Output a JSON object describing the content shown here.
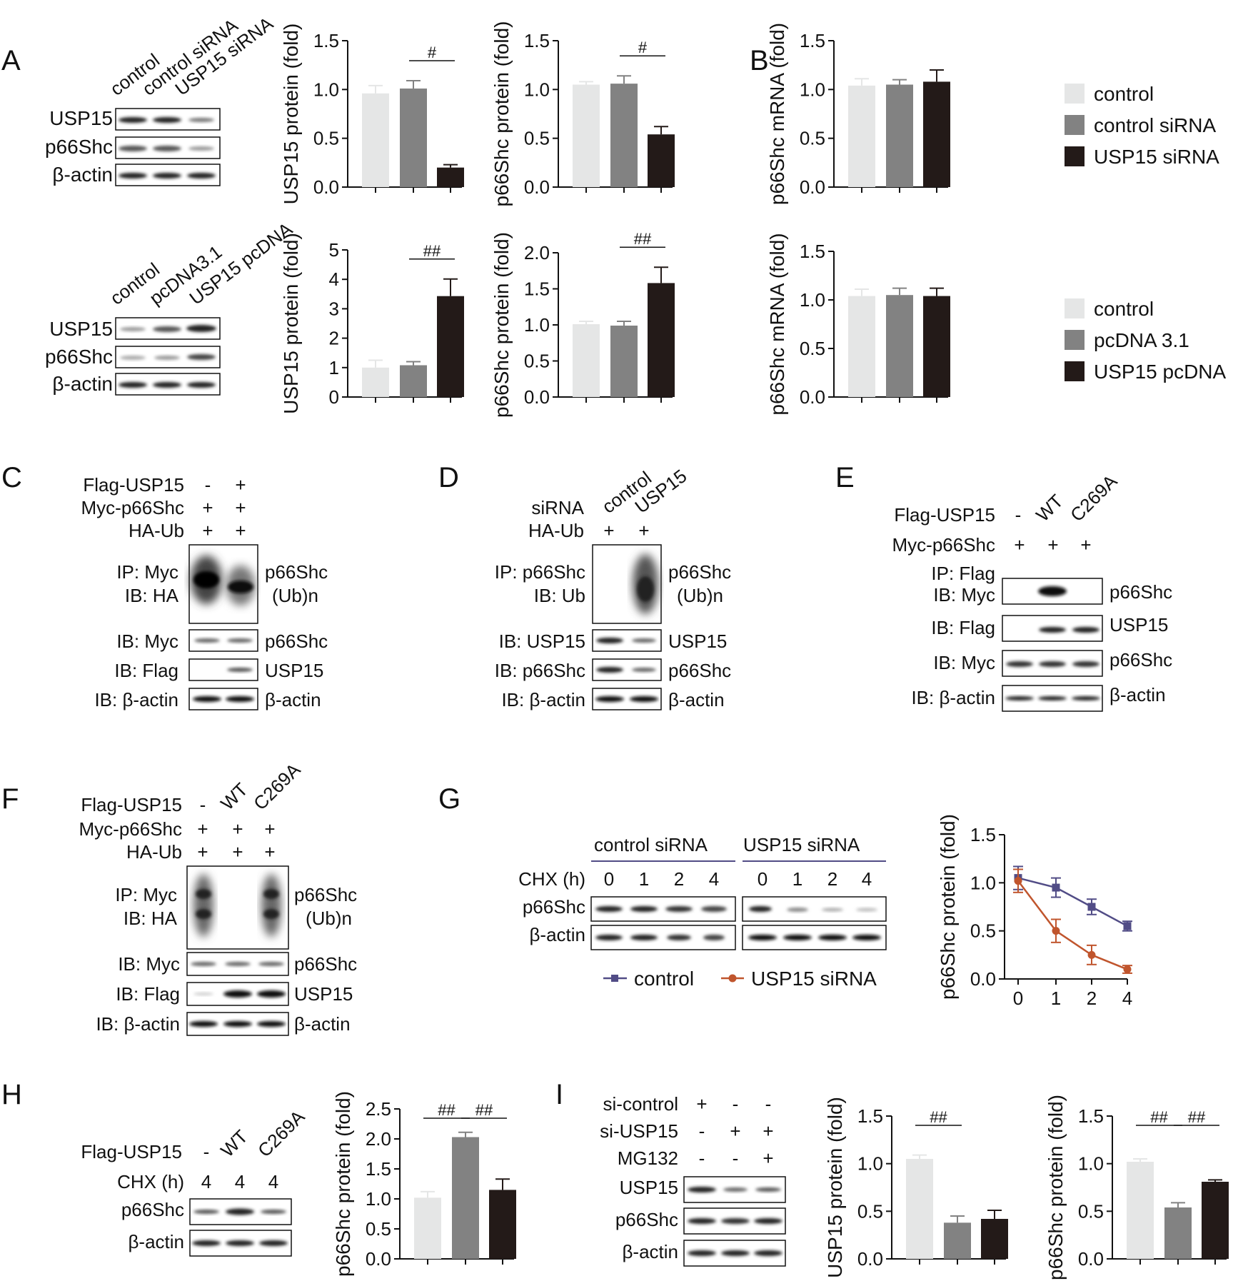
{
  "legend_top": [
    "control",
    "control siRNA",
    "USP15 siRNA"
  ],
  "legend_mid": [
    "control",
    "pcDNA 3.1",
    "USP15 pcDNA"
  ],
  "colors": {
    "control": "#e5e6e6",
    "vehicle": "#828282",
    "treatment": "#231a18",
    "line_control": "#514c86",
    "line_si": "#c0552d"
  },
  "panels": {
    "A": {
      "label": "A",
      "blot1": {
        "lanes": [
          "control",
          "control siRNA",
          "USP15 siRNA"
        ],
        "rows": [
          "USP15",
          "p66Shc",
          "β-actin"
        ]
      },
      "blot2": {
        "lanes": [
          "control",
          "pcDNA3.1",
          "USP15 pcDNA"
        ],
        "rows": [
          "USP15",
          "p66Shc",
          "β-actin"
        ]
      }
    },
    "B": {
      "label": "B"
    },
    "C": {
      "label": "C",
      "conditions": [
        {
          "name": "Flag-USP15",
          "marks": [
            "-",
            "+"
          ]
        },
        {
          "name": "Myc-p66Shc",
          "marks": [
            "+",
            "+"
          ]
        },
        {
          "name": "HA-Ub",
          "marks": [
            "+",
            "+"
          ]
        }
      ],
      "ip_left": [
        "IP: Myc",
        "IB: HA"
      ],
      "ip_right": [
        "p66Shc",
        "(Ub)n"
      ],
      "ib_rows": [
        {
          "left": "IB: Myc",
          "right": "p66Shc"
        },
        {
          "left": "IB: Flag",
          "right": "USP15"
        },
        {
          "left": "IB: β-actin",
          "right": "β-actin"
        }
      ]
    },
    "D": {
      "label": "D",
      "siRNA_label": "siRNA",
      "lanes": [
        "control",
        "USP15"
      ],
      "haub": {
        "name": "HA-Ub",
        "marks": [
          "+",
          "+"
        ]
      },
      "ip_left": [
        "IP: p66Shc",
        "IB: Ub"
      ],
      "ip_right": [
        "p66Shc",
        "(Ub)n"
      ],
      "ib_rows": [
        {
          "left": "IB: USP15",
          "right": "USP15"
        },
        {
          "left": "IB: p66Shc",
          "right": "p66Shc"
        },
        {
          "left": "IB: β-actin",
          "right": "β-actin"
        }
      ]
    },
    "E": {
      "label": "E",
      "conditions": [
        {
          "name": "Flag-USP15",
          "marks": [
            "-",
            "WT",
            "C269A"
          ]
        },
        {
          "name": "Myc-p66Shc",
          "marks": [
            "+",
            "+",
            "+"
          ]
        }
      ],
      "ip_left": [
        "IP: Flag",
        "IB: Myc"
      ],
      "ip_right": "p66Shc",
      "ib_rows": [
        {
          "left": "IB: Flag",
          "right": "USP15"
        },
        {
          "left": "IB: Myc",
          "right": "p66Shc"
        },
        {
          "left": "IB: β-actin",
          "right": "β-actin"
        }
      ]
    },
    "F": {
      "label": "F",
      "conditions": [
        {
          "name": "Flag-USP15",
          "marks": [
            "-",
            "WT",
            "C269A"
          ]
        },
        {
          "name": "Myc-p66Shc",
          "marks": [
            "+",
            "+",
            "+"
          ]
        },
        {
          "name": "HA-Ub",
          "marks": [
            "+",
            "+",
            "+"
          ]
        }
      ],
      "ip_left": [
        "IP: Myc",
        "IB: HA"
      ],
      "ip_right": [
        "p66Shc",
        "(Ub)n"
      ],
      "ib_rows": [
        {
          "left": "IB: Myc",
          "right": "p66Shc"
        },
        {
          "left": "IB: Flag",
          "right": "USP15"
        },
        {
          "left": "IB: β-actin",
          "right": "β-actin"
        }
      ]
    },
    "G": {
      "label": "G",
      "group_left": "control siRNA",
      "group_right": "USP15 siRNA",
      "chx_label": "CHX (h)",
      "times": [
        "0",
        "1",
        "2",
        "4",
        "0",
        "1",
        "2",
        "4"
      ],
      "rows": [
        "p66Shc",
        "β-actin"
      ],
      "legend": [
        "control",
        "USP15 siRNA"
      ]
    },
    "H": {
      "label": "H",
      "flag_label": "Flag-USP15",
      "lanes": [
        "-",
        "WT",
        "C269A"
      ],
      "chx_label": "CHX (h)",
      "chx_values": [
        "4",
        "4",
        "4"
      ],
      "rows": [
        "p66Shc",
        "β-actin"
      ]
    },
    "I": {
      "label": "I",
      "conditions": [
        {
          "name": "si-control",
          "marks": [
            "+",
            "-",
            "-"
          ]
        },
        {
          "name": "si-USP15",
          "marks": [
            "-",
            "+",
            "+"
          ]
        },
        {
          "name": "MG132",
          "marks": [
            "-",
            "-",
            "+"
          ]
        }
      ],
      "rows": [
        "USP15",
        "p66Shc",
        "β-actin"
      ]
    }
  },
  "chart_data": [
    {
      "id": "A1",
      "type": "bar",
      "ylabel": "USP15 protein (fold)",
      "ylim": [
        0,
        1.5
      ],
      "ticks": [
        "0.0",
        "0.5",
        "1.0",
        "1.5"
      ],
      "values": [
        0.96,
        1.01,
        0.2
      ],
      "errors": [
        0.08,
        0.08,
        0.03
      ],
      "sig": [
        {
          "label": "#",
          "from": 1,
          "to": 2
        }
      ]
    },
    {
      "id": "A2",
      "type": "bar",
      "ylabel": "p66Shc protein (fold)",
      "ylim": [
        0,
        1.5
      ],
      "ticks": [
        "0.0",
        "0.5",
        "1.0",
        "1.5"
      ],
      "values": [
        1.05,
        1.06,
        0.54
      ],
      "errors": [
        0.03,
        0.08,
        0.08
      ],
      "sig": [
        {
          "label": "#",
          "from": 1,
          "to": 2
        }
      ]
    },
    {
      "id": "B1",
      "type": "bar",
      "ylabel": "p66Shc mRNA (fold)",
      "ylim": [
        0,
        1.5
      ],
      "ticks": [
        "0.0",
        "0.5",
        "1.0",
        "1.5"
      ],
      "values": [
        1.04,
        1.05,
        1.08
      ],
      "errors": [
        0.07,
        0.05,
        0.12
      ],
      "sig": []
    },
    {
      "id": "A3",
      "type": "bar",
      "ylabel": "USP15 protein (fold)",
      "ylim": [
        0,
        5
      ],
      "ticks": [
        "0",
        "1",
        "2",
        "3",
        "4",
        "5"
      ],
      "values": [
        1.0,
        1.08,
        3.43
      ],
      "errors": [
        0.25,
        0.12,
        0.58
      ],
      "sig": [
        {
          "label": "##",
          "from": 1,
          "to": 2
        }
      ]
    },
    {
      "id": "A4",
      "type": "bar",
      "ylabel": "p66Shc protein (fold)",
      "ylim": [
        0,
        2.0
      ],
      "ticks": [
        "0.0",
        "0.5",
        "1.0",
        "1.5",
        "2.0"
      ],
      "values": [
        1.01,
        0.99,
        1.58
      ],
      "errors": [
        0.04,
        0.06,
        0.22
      ],
      "sig": [
        {
          "label": "##",
          "from": 1,
          "to": 2
        }
      ]
    },
    {
      "id": "B2",
      "type": "bar",
      "ylabel": "p66Shc mRNA (fold)",
      "ylim": [
        0,
        1.5
      ],
      "ticks": [
        "0.0",
        "0.5",
        "1.0",
        "1.5"
      ],
      "values": [
        1.04,
        1.05,
        1.04
      ],
      "errors": [
        0.07,
        0.07,
        0.08
      ],
      "sig": []
    },
    {
      "id": "G1",
      "type": "line",
      "ylabel": "p66Shc protein (fold)",
      "ylim": [
        0,
        1.5
      ],
      "ticks": [
        "0.0",
        "0.5",
        "1.0",
        "1.5"
      ],
      "categories": [
        "0",
        "1",
        "2",
        "4"
      ],
      "series": [
        {
          "name": "control",
          "values": [
            1.05,
            0.95,
            0.75,
            0.55
          ],
          "errors": [
            0.12,
            0.1,
            0.08,
            0.05
          ]
        },
        {
          "name": "USP15 siRNA",
          "values": [
            1.02,
            0.5,
            0.25,
            0.1
          ],
          "errors": [
            0.12,
            0.12,
            0.1,
            0.04
          ]
        }
      ]
    },
    {
      "id": "H1",
      "type": "bar",
      "ylabel": "p66Shc protein (fold)",
      "ylim": [
        0,
        2.5
      ],
      "ticks": [
        "0.0",
        "0.5",
        "1.0",
        "1.5",
        "2.0",
        "2.5"
      ],
      "values": [
        1.02,
        2.03,
        1.15
      ],
      "errors": [
        0.1,
        0.08,
        0.18
      ],
      "sig": [
        {
          "label": "##",
          "from": 0,
          "to": 1
        },
        {
          "label": "##",
          "from": 1,
          "to": 2
        }
      ]
    },
    {
      "id": "I1",
      "type": "bar",
      "ylabel": "USP15 protein (fold)",
      "ylim": [
        0,
        1.5
      ],
      "ticks": [
        "0.0",
        "0.5",
        "1.0",
        "1.5"
      ],
      "values": [
        1.05,
        0.38,
        0.42
      ],
      "errors": [
        0.04,
        0.07,
        0.09
      ],
      "sig": [
        {
          "label": "##",
          "from": 0,
          "to": 1
        }
      ]
    },
    {
      "id": "I2",
      "type": "bar",
      "ylabel": "p66Shc protein (fold)",
      "ylim": [
        0,
        1.5
      ],
      "ticks": [
        "0.0",
        "0.5",
        "1.0",
        "1.5"
      ],
      "values": [
        1.02,
        0.54,
        0.81
      ],
      "errors": [
        0.03,
        0.05,
        0.02
      ],
      "sig": [
        {
          "label": "##",
          "from": 0,
          "to": 1
        },
        {
          "label": "##",
          "from": 1,
          "to": 2
        }
      ]
    }
  ]
}
